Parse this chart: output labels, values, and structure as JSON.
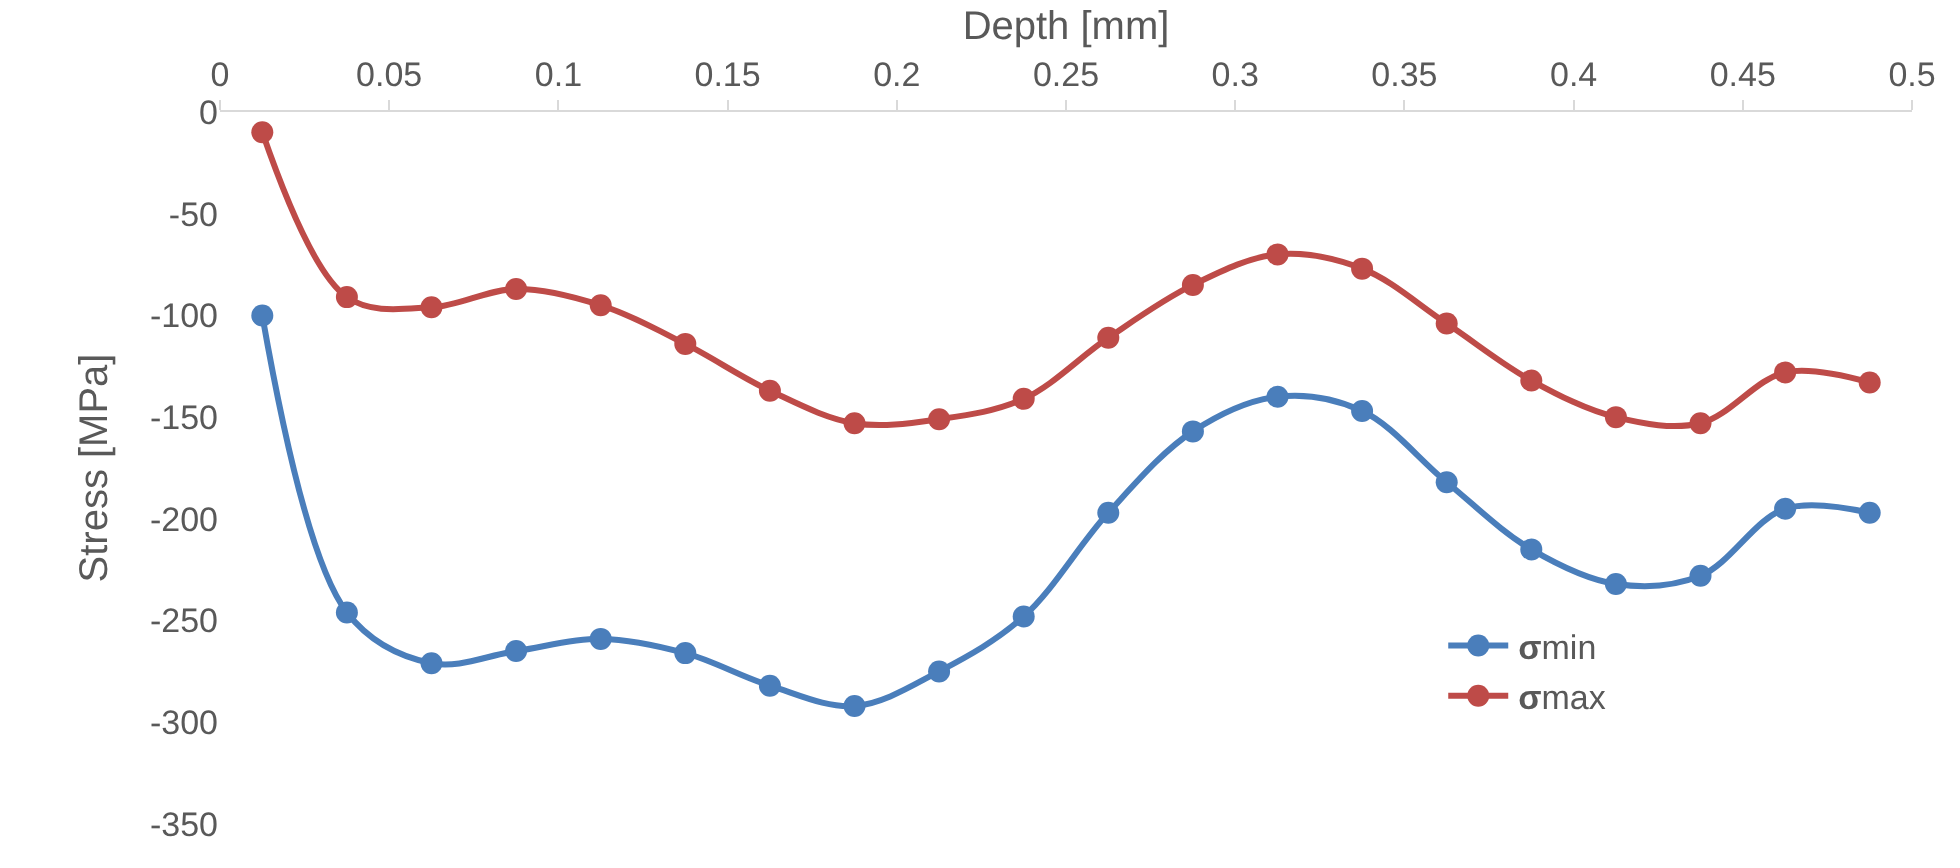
{
  "chart_data": {
    "type": "line",
    "xlabel": "Depth [mm]",
    "ylabel": "Stress [MPa]",
    "x": [
      0.0125,
      0.0375,
      0.0625,
      0.0875,
      0.1125,
      0.1375,
      0.1625,
      0.1875,
      0.2125,
      0.2375,
      0.2625,
      0.2875,
      0.3125,
      0.3375,
      0.3625,
      0.3875,
      0.4125,
      0.4375,
      0.4625,
      0.4875
    ],
    "series": [
      {
        "name": "σmin",
        "color": "#4a7ebb",
        "values": [
          -100,
          -246,
          -271,
          -265,
          -259,
          -266,
          -282,
          -292,
          -275,
          -248,
          -197,
          -157,
          -140,
          -147,
          -182,
          -215,
          -232,
          -228,
          -195,
          -197
        ]
      },
      {
        "name": "σmax",
        "color": "#be4b48",
        "values": [
          -10,
          -91,
          -96,
          -87,
          -95,
          -114,
          -137,
          -153,
          -151,
          -141,
          -111,
          -85,
          -70,
          -77,
          -104,
          -132,
          -150,
          -153,
          -128,
          -133
        ]
      }
    ],
    "xlim": [
      0,
      0.5
    ],
    "xticks": [
      0,
      0.05,
      0.1,
      0.15,
      0.2,
      0.25,
      0.3,
      0.35,
      0.4,
      0.45,
      0.5
    ],
    "ylim": [
      -350,
      0
    ],
    "yticks": [
      0,
      -50,
      -100,
      -150,
      -200,
      -250,
      -300,
      -350
    ],
    "grid": false,
    "legend": "bottom right",
    "marker": "circle",
    "line_style": "solid"
  }
}
